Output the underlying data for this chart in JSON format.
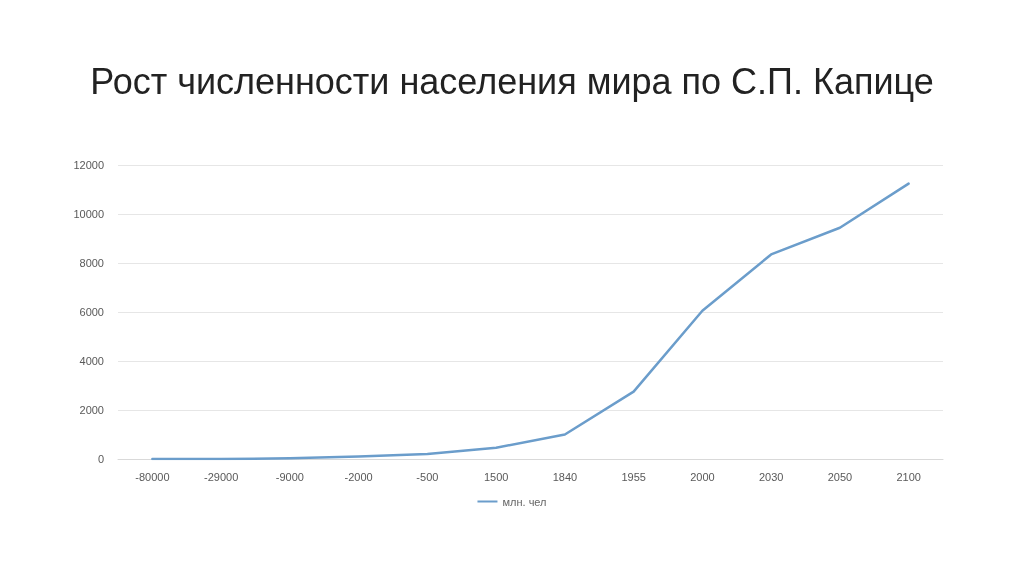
{
  "chart_data": {
    "type": "line",
    "title": "Рост численности населения мира по С.П. Капице",
    "categories": [
      "-80000",
      "-29000",
      "-9000",
      "-2000",
      "-500",
      "1500",
      "1840",
      "1955",
      "2000",
      "2030",
      "2050",
      "2100"
    ],
    "series": [
      {
        "name": "млн. чел",
        "color": "#6b9dcb",
        "values": [
          0,
          0,
          30,
          100,
          200,
          460,
          1000,
          2750,
          6050,
          8350,
          9440,
          11240
        ]
      }
    ],
    "ylim": [
      0,
      12000
    ],
    "yticks": [
      0,
      2000,
      4000,
      6000,
      8000,
      10000,
      12000
    ],
    "grid": "y",
    "legend": "bottom",
    "marker": "none",
    "line_style": "solid"
  }
}
